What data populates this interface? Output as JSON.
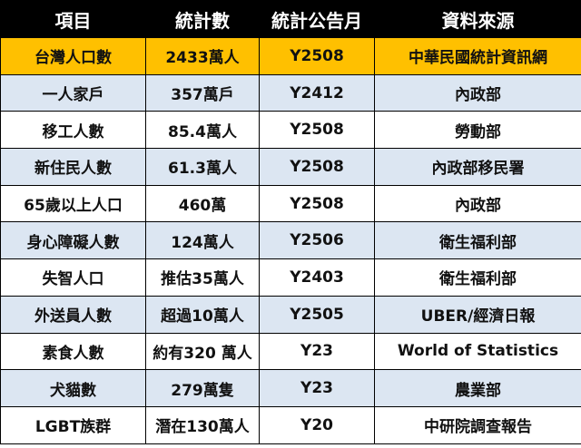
{
  "table": {
    "headers": [
      "項目",
      "統計數",
      "統計公告月",
      "資料來源"
    ],
    "rows": [
      [
        "台灣人口數",
        "2433萬人",
        "Y2508",
        "中華民國統計資訊網"
      ],
      [
        "一人家戶",
        "357萬戶",
        "Y2412",
        "內政部"
      ],
      [
        "移工人數",
        "85.4萬人",
        "Y2508",
        "勞動部"
      ],
      [
        "新住民人數",
        "61.3萬人",
        "Y2508",
        "內政部移民署"
      ],
      [
        "65歲以上人口",
        "460萬",
        "Y2508",
        "內政部"
      ],
      [
        "身心障礙人數",
        "124萬人",
        "Y2506",
        "衛生福利部"
      ],
      [
        "失智人口",
        "推估35萬人",
        "Y2403",
        "衛生福利部"
      ],
      [
        "外送員人數",
        "超過10萬人",
        "Y2505",
        "UBER/經濟日報"
      ],
      [
        "素食人數",
        "約有320 萬人",
        "Y23",
        "World of Statistics"
      ],
      [
        "犬貓數",
        "279萬隻",
        "Y23",
        "農業部"
      ],
      [
        "LGBT族群",
        "潛在130萬人",
        "Y20",
        "中研院調查報告"
      ]
    ]
  },
  "colors": {
    "header_bg": "#000000",
    "header_text": "#ffffff",
    "highlight_row": "#ffc000",
    "stripe_row": "#dce6f2",
    "plain_row": "#ffffff"
  }
}
